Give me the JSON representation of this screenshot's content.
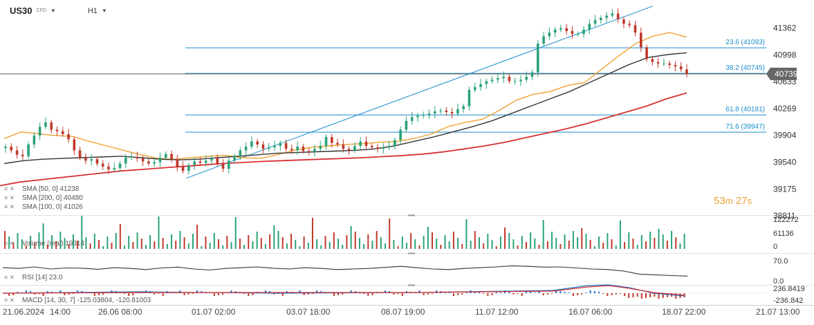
{
  "header": {
    "symbol": "US30",
    "instrument_type": "CFD",
    "timeframe": "H1"
  },
  "countdown": {
    "minutes": "53",
    "minutes_unit": "m",
    "seconds": "27",
    "seconds_unit": "s"
  },
  "colors": {
    "bull": "#2aa277",
    "bear": "#c0392b",
    "sma50": "#f0a030",
    "sma100": "#333333",
    "sma200": "#d83030",
    "fib": "#1a8ccc",
    "price_label_bg": "#666666",
    "countdown": "#e8a23a"
  },
  "chart_data": {
    "type": "candlestick",
    "time_axis_labels": [
      "21.06.2024",
      "14:00",
      "26.06 08:00",
      "01.07 02:00",
      "03.07 18:00",
      "08.07 19:00",
      "11.07 12:00",
      "16.07 06:00",
      "18.07 22:00",
      "21.07 13:00"
    ],
    "y_axis_ticks": [
      41362,
      40998,
      40633,
      40269,
      39904,
      39540,
      39175,
      38811
    ],
    "y_range": [
      38811,
      41630
    ],
    "current_price": "40739",
    "price_series": [
      39750,
      39700,
      39640,
      39620,
      39780,
      39900,
      40020,
      40080,
      39980,
      39960,
      39920,
      39850,
      39700,
      39600,
      39560,
      39580,
      39520,
      39480,
      39440,
      39460,
      39520,
      39600,
      39610,
      39590,
      39550,
      39520,
      39540,
      39600,
      39650,
      39580,
      39480,
      39420,
      39500,
      39550,
      39530,
      39560,
      39600,
      39520,
      39450,
      39560,
      39620,
      39700,
      39750,
      39820,
      39780,
      39720,
      39740,
      39760,
      39800,
      39720,
      39700,
      39750,
      39690,
      39680,
      39720,
      39760,
      39880,
      39800,
      39780,
      39720,
      39700,
      39760,
      39820,
      39760,
      39740,
      39720,
      39740,
      39760,
      39840,
      39980,
      40100,
      40150,
      40170,
      40180,
      40200,
      40230,
      40240,
      40220,
      40200,
      40260,
      40300,
      40520,
      40560,
      40600,
      40640,
      40660,
      40680,
      40700,
      40640,
      40640,
      40660,
      40700,
      40760,
      41150,
      41250,
      41300,
      41340,
      41360,
      41320,
      41280,
      41280,
      41340,
      41420,
      41470,
      41500,
      41530,
      41560,
      41480,
      41420,
      41400,
      41300,
      41100,
      40940,
      40900,
      40880,
      40880,
      40860,
      40840,
      40800,
      40739
    ],
    "overlays": [
      {
        "name": "SMA [50, 0]",
        "value": "41238",
        "points": [
          39860,
          39950,
          39925,
          39900,
          39890,
          39820,
          39760,
          39700,
          39640,
          39590,
          39580,
          39600,
          39620,
          39630,
          39600,
          39590,
          39640,
          39700,
          39740,
          39760,
          39780,
          39790,
          39810,
          39820,
          39860,
          39920,
          40020,
          40080,
          40120,
          40240,
          40380,
          40460,
          40500,
          40580,
          40620,
          40800,
          40980,
          41150,
          41250,
          41300,
          41238
        ]
      },
      {
        "name": "SMA [200, 0]",
        "value": "40480",
        "points": [
          39220,
          39270,
          39300,
          39330,
          39360,
          39390,
          39420,
          39440,
          39460,
          39480,
          39500,
          39520,
          39535,
          39550,
          39560,
          39570,
          39580,
          39590,
          39600,
          39615,
          39630,
          39650,
          39680,
          39720,
          39760,
          39810,
          39870,
          39930,
          39990,
          40060,
          40140,
          40220,
          40300,
          40400,
          40480
        ]
      },
      {
        "name": "SMA [100, 0]",
        "value": "41026",
        "points": [
          39520,
          39560,
          39580,
          39590,
          39600,
          39610,
          39620,
          39600,
          39580,
          39570,
          39580,
          39600,
          39620,
          39640,
          39660,
          39670,
          39680,
          39690,
          39700,
          39720,
          39760,
          39820,
          39880,
          39950,
          40020,
          40100,
          40200,
          40300,
          40400,
          40500,
          40620,
          40740,
          40860,
          40960,
          41000,
          41026
        ]
      }
    ],
    "trendline": {
      "from": 39320,
      "to": 41660
    },
    "fibonacci_levels": [
      {
        "label": "23.6 (41093)",
        "value": 41093
      },
      {
        "label": "38.2 (40745)",
        "value": 40745
      },
      {
        "label": "61.8 (40181)",
        "value": 40181
      },
      {
        "label": "71.6 (39947)",
        "value": 39947
      }
    ],
    "volume": {
      "name": "Volume (real)",
      "value": "19314",
      "ticks": [
        "122272",
        "61136",
        "0"
      ]
    },
    "rsi": {
      "name": "RSI [14]",
      "value": "23.0",
      "ticks": [
        "70.0",
        "0.0"
      ],
      "points": [
        55,
        52,
        58,
        50,
        54,
        53,
        49,
        55,
        52,
        48,
        54,
        57,
        50,
        46,
        52,
        55,
        58,
        53,
        50,
        55,
        52,
        48,
        50,
        52,
        56,
        60,
        55,
        50,
        48,
        52,
        55,
        58,
        62,
        60,
        57,
        58,
        54,
        50,
        48,
        42,
        30,
        28,
        25,
        23
      ]
    },
    "macd": {
      "name": "MACD [14, 30, 7]",
      "value": "-125.03804, -120.81003",
      "ticks": [
        "236.8419",
        "-236.842"
      ]
    }
  }
}
